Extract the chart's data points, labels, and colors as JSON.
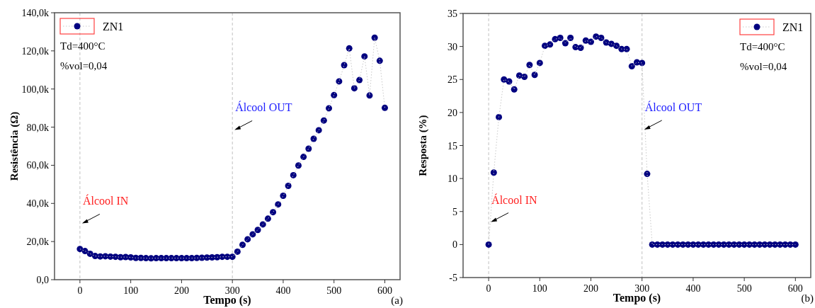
{
  "chart_data": [
    {
      "type": "scatter",
      "xlabel": "Tempo (s)",
      "ylabel": "Resistência (Ω)",
      "x": [
        0,
        10,
        20,
        30,
        40,
        50,
        60,
        70,
        80,
        90,
        100,
        110,
        120,
        130,
        140,
        150,
        160,
        170,
        180,
        190,
        200,
        210,
        220,
        230,
        240,
        250,
        260,
        270,
        280,
        290,
        300,
        310,
        320,
        330,
        340,
        350,
        360,
        370,
        380,
        390,
        400,
        410,
        420,
        430,
        440,
        450,
        460,
        470,
        480,
        490,
        500,
        510,
        520,
        530,
        540,
        550,
        560,
        570,
        580,
        590,
        600
      ],
      "series": [
        {
          "name": "ZN1",
          "color": "#000080",
          "line_style": "none",
          "values": [
            16100,
            15000,
            13600,
            12400,
            12200,
            12300,
            12100,
            12000,
            11800,
            11900,
            11700,
            11400,
            11400,
            11300,
            11200,
            11300,
            11300,
            11300,
            11300,
            11300,
            11300,
            11300,
            11300,
            11400,
            11500,
            11600,
            11700,
            11800,
            12000,
            12000,
            12000,
            14700,
            18300,
            21200,
            23800,
            26100,
            29000,
            32000,
            35400,
            39500,
            44000,
            49200,
            54800,
            59900,
            64400,
            68700,
            73900,
            78400,
            83500,
            89900,
            96800,
            104000,
            112500,
            121300,
            100400,
            104700,
            117100,
            96600,
            126900,
            114800,
            90100
          ]
        },
        {
          "type": "line",
          "color": "#c8c8c8",
          "marker": "none",
          "values": [
            16100,
            15000,
            13600,
            12400,
            12200,
            12300,
            12100,
            12000,
            11800,
            11900,
            11700,
            11400,
            11400,
            11300,
            11200,
            11300,
            11300,
            11300,
            11300,
            11300,
            11300,
            11300,
            11300,
            11400,
            11500,
            11600,
            11700,
            11800,
            12000,
            12000,
            12000,
            14700,
            18300,
            21200,
            23800,
            26100,
            29000,
            32000,
            35400,
            39500,
            44000,
            49200,
            54800,
            59900,
            64400,
            68700,
            73900,
            78400,
            83500,
            89900,
            96800,
            104000,
            112500,
            121300,
            100400,
            104700,
            117100,
            96600,
            126900,
            114800,
            90100
          ]
        }
      ],
      "xlim": [
        -50,
        630
      ],
      "xticks": [
        0,
        100,
        200,
        300,
        400,
        500,
        600
      ],
      "ylim": [
        0,
        140000
      ],
      "yticks": [
        {
          "value": 0,
          "label": "0,0"
        },
        {
          "value": 20000,
          "label": "20,0k"
        },
        {
          "value": 40000,
          "label": "40,0k"
        },
        {
          "value": 60000,
          "label": "60,0k"
        },
        {
          "value": 80000,
          "label": "80,0k"
        },
        {
          "value": 100000,
          "label": "100,0k"
        },
        {
          "value": 120000,
          "label": "120,0k"
        },
        {
          "value": 140000,
          "label": "140,0k"
        }
      ],
      "ref_lines": [
        {
          "axis": "x",
          "value": 0,
          "color": "#c0c0c0",
          "line_style": "dashed"
        },
        {
          "axis": "x",
          "value": 300,
          "color": "#c0c0c0",
          "line_style": "dashed"
        }
      ],
      "annotations": [
        "Td=400°C",
        "%vol=0,04",
        "Álcool IN",
        "Álcool OUT",
        "(a)"
      ],
      "legend": "top left",
      "marker": "circle",
      "line_style": "dotted",
      "grid": false
    },
    {
      "type": "scatter",
      "xlabel": "Tempo (s)",
      "ylabel": "Resposta (%)",
      "x": [
        0,
        10,
        20,
        30,
        40,
        50,
        60,
        70,
        80,
        90,
        100,
        110,
        120,
        130,
        140,
        150,
        160,
        170,
        180,
        190,
        200,
        210,
        220,
        230,
        240,
        250,
        260,
        270,
        280,
        290,
        300,
        310,
        320,
        330,
        340,
        350,
        360,
        370,
        380,
        390,
        400,
        410,
        420,
        430,
        440,
        450,
        460,
        470,
        480,
        490,
        500,
        510,
        520,
        530,
        540,
        550,
        560,
        570,
        580,
        590,
        600
      ],
      "series": [
        {
          "name": "ZN1",
          "color": "#000080",
          "line_style": "none",
          "values": [
            0,
            10.9,
            19.3,
            25.0,
            24.7,
            23.5,
            25.6,
            25.4,
            27.2,
            25.7,
            27.5,
            30.1,
            30.3,
            31.1,
            31.3,
            30.5,
            31.3,
            29.9,
            29.8,
            30.9,
            30.7,
            31.5,
            31.3,
            30.6,
            30.4,
            30.1,
            29.6,
            29.6,
            27.0,
            27.6,
            27.5,
            10.7,
            0,
            0,
            0,
            0,
            0,
            0,
            0,
            0,
            0,
            0,
            0,
            0,
            0,
            0,
            0,
            0,
            0,
            0,
            0,
            0,
            0,
            0,
            0,
            0,
            0,
            0,
            0,
            0,
            0
          ]
        },
        {
          "type": "line",
          "color": "#c8c8c8",
          "marker": "none",
          "values": [
            0,
            10.9,
            19.3,
            25.0,
            24.7,
            23.5,
            25.6,
            25.4,
            27.2,
            25.7,
            27.5,
            30.1,
            30.3,
            31.1,
            31.3,
            30.5,
            31.3,
            29.9,
            29.8,
            30.9,
            30.7,
            31.5,
            31.3,
            30.6,
            30.4,
            30.1,
            29.6,
            29.6,
            27.0,
            27.6,
            27.5,
            10.7,
            0,
            0,
            0,
            0,
            0,
            0,
            0,
            0,
            0,
            0,
            0,
            0,
            0,
            0,
            0,
            0,
            0,
            0,
            0,
            0,
            0,
            0,
            0,
            0,
            0,
            0,
            0,
            0,
            0
          ]
        }
      ],
      "xlim": [
        -50,
        630
      ],
      "xticks": [
        0,
        100,
        200,
        300,
        400,
        500,
        600
      ],
      "ylim": [
        -5,
        35
      ],
      "yticks": [
        -5,
        0,
        5,
        10,
        15,
        20,
        25,
        30,
        35
      ],
      "ref_lines": [
        {
          "axis": "x",
          "value": 0,
          "color": "#c0c0c0",
          "line_style": "dashed"
        },
        {
          "axis": "x",
          "value": 300,
          "color": "#c0c0c0",
          "line_style": "dashed"
        }
      ],
      "annotations": [
        "Td=400°C",
        "%vol=0,04",
        "Álcool IN",
        "Álcool OUT",
        "(b)"
      ],
      "legend": "top right",
      "marker": "circle",
      "line_style": "dotted",
      "grid": false
    }
  ]
}
